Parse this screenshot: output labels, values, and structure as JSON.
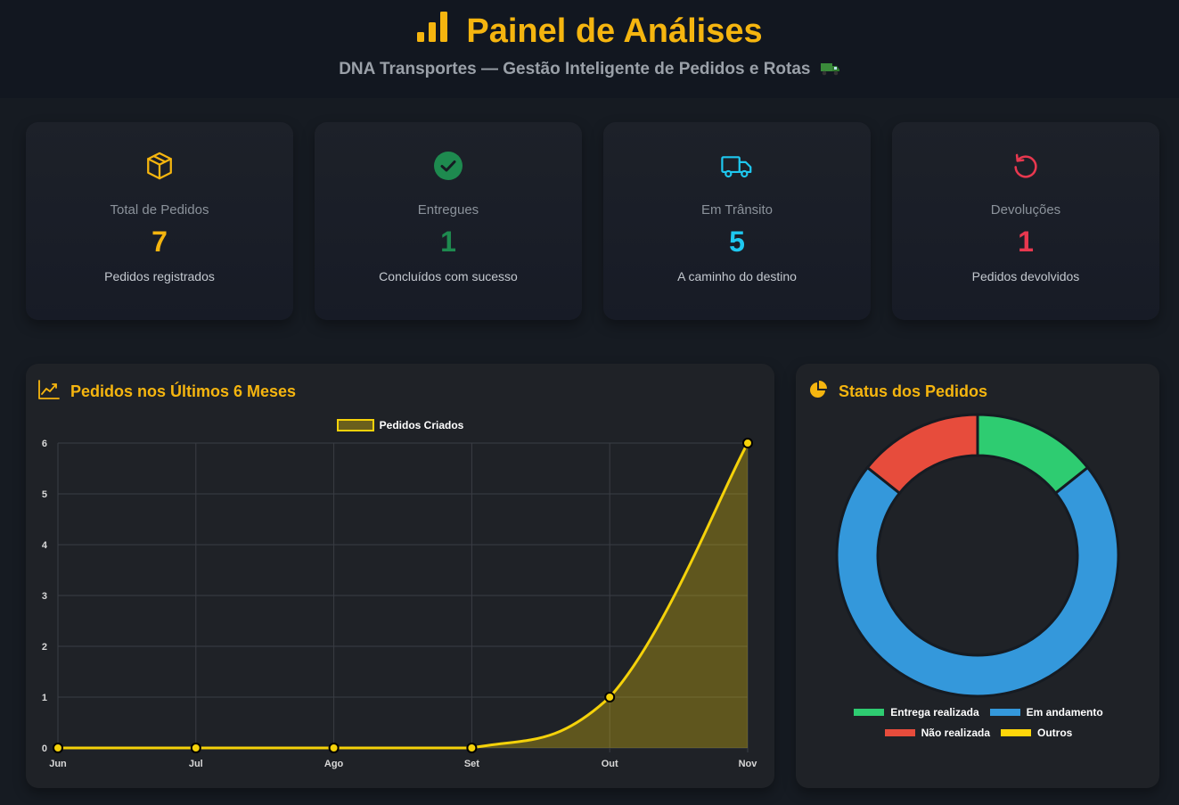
{
  "header": {
    "title": "Painel de Análises",
    "subtitle": "DNA Transportes — Gestão Inteligente de Pedidos e Rotas",
    "title_icon": "bar-chart-icon",
    "subtitle_icon": "truck-emoji"
  },
  "cards": [
    {
      "icon": "package-icon",
      "label": "Total de Pedidos",
      "value": "7",
      "desc": "Pedidos registrados",
      "color": "#f5b50f"
    },
    {
      "icon": "check-circle-icon",
      "label": "Entregues",
      "value": "1",
      "desc": "Concluídos com sucesso",
      "color": "#1e8a4f"
    },
    {
      "icon": "truck-icon",
      "label": "Em Trânsito",
      "value": "5",
      "desc": "A caminho do destino",
      "color": "#1ec8f0"
    },
    {
      "icon": "rotate-ccw-icon",
      "label": "Devoluções",
      "value": "1",
      "desc": "Pedidos devolvidos",
      "color": "#e8384f"
    }
  ],
  "line_panel": {
    "title": "Pedidos nos Últimos 6 Meses",
    "icon": "trending-up-icon"
  },
  "pie_panel": {
    "title": "Status dos Pedidos",
    "icon": "pie-chart-icon"
  },
  "chart_data": [
    {
      "type": "area",
      "categories": [
        "Jun",
        "Jul",
        "Ago",
        "Set",
        "Out",
        "Nov"
      ],
      "series": [
        {
          "name": "Pedidos Criados",
          "values": [
            0,
            0,
            0,
            0,
            1,
            6
          ],
          "color": "#f5d20a"
        }
      ],
      "yticks": [
        "0",
        "1",
        "2",
        "3",
        "4",
        "5",
        "6"
      ],
      "ylim": [
        0,
        6
      ],
      "grid": true,
      "legend": "top"
    },
    {
      "type": "pie",
      "donut": true,
      "labels": [
        "Entrega realizada",
        "Em andamento",
        "Não realizada",
        "Outros"
      ],
      "values": [
        1,
        5,
        1,
        0
      ],
      "colors": [
        "#2ecc71",
        "#3498db",
        "#e74c3c",
        "#ffd60a"
      ],
      "legend": "bottom"
    }
  ]
}
